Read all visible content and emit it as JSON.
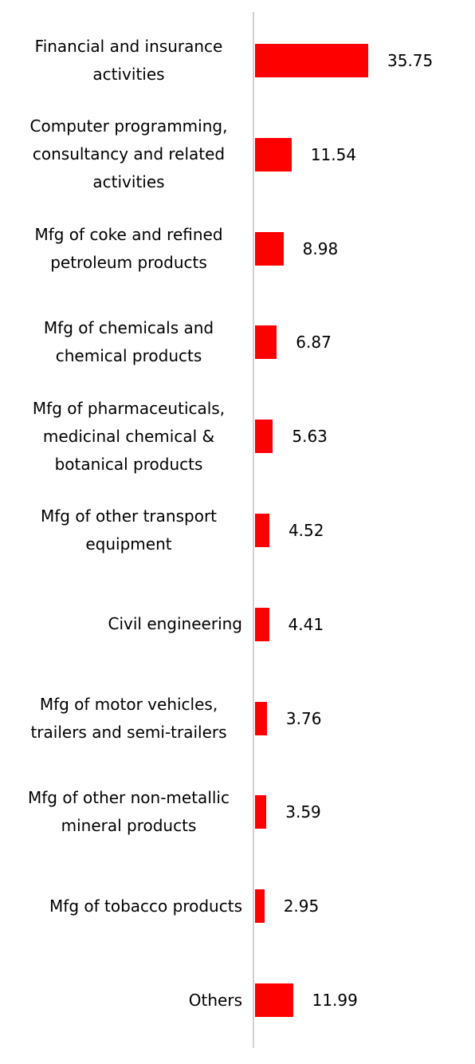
{
  "chart_data": {
    "type": "bar",
    "orientation": "horizontal",
    "color": "#ff0000",
    "categories": [
      "Financial and insurance activities",
      "Computer programming, consultancy and related activities",
      "Mfg of coke and refined petroleum products",
      "Mfg of chemicals and chemical products",
      "Mfg of pharmaceuticals, medicinal chemical & botanical products",
      "Mfg of other transport equipment",
      "Civil engineering",
      "Mfg of motor vehicles, trailers and semi-trailers",
      "Mfg of other non-metallic mineral products",
      "Mfg of tobacco products",
      "Others"
    ],
    "values": [
      35.75,
      11.54,
      8.98,
      6.87,
      5.63,
      4.52,
      4.41,
      3.76,
      3.59,
      2.95,
      11.99
    ]
  }
}
